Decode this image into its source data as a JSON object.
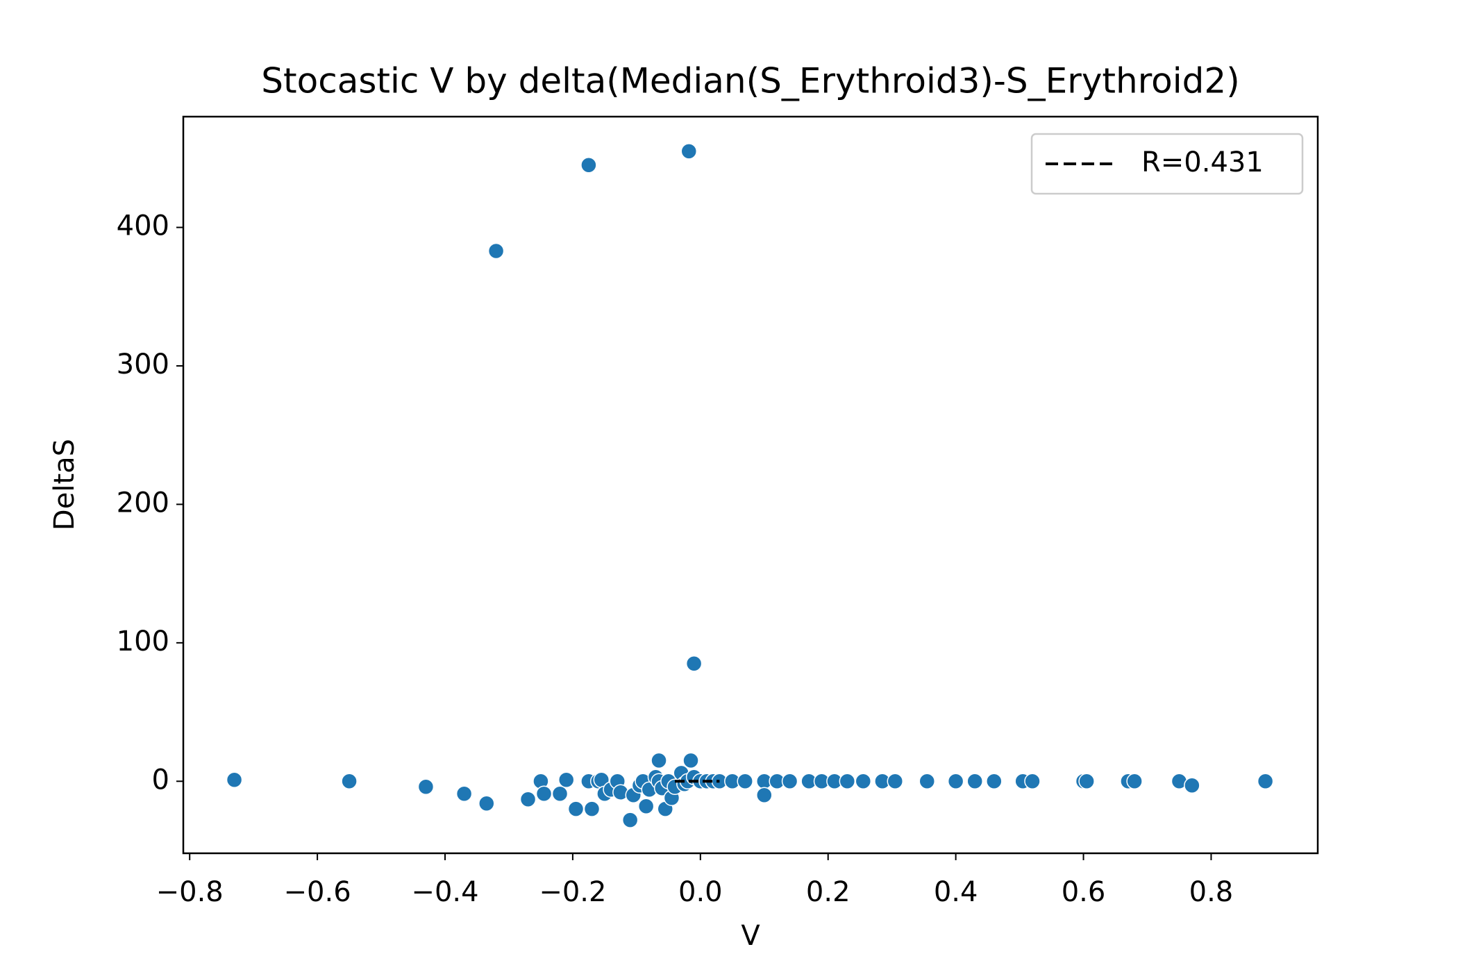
{
  "chart_data": {
    "type": "scatter",
    "title": "Stocastic V by delta(Median(S_Erythroid3)-S_Erythroid2)",
    "x_label": "V",
    "y_label": "DeltaS",
    "xlim": [
      -0.81,
      0.967
    ],
    "ylim": [
      -52,
      480
    ],
    "xticks": [
      {
        "value": -0.8,
        "label": "−0.8"
      },
      {
        "value": -0.6,
        "label": "−0.6"
      },
      {
        "value": -0.4,
        "label": "−0.4"
      },
      {
        "value": -0.2,
        "label": "−0.2"
      },
      {
        "value": 0,
        "label": "0.0"
      },
      0.2,
      0.4,
      0.6,
      0.8
    ],
    "yticks": [
      0,
      100,
      200,
      300,
      400
    ],
    "legend": "upper right",
    "series": [
      {
        "color": "#1f77b4",
        "x": [
          -0.73,
          -0.55,
          -0.43,
          -0.37,
          -0.335,
          -0.32,
          -0.175,
          -0.018,
          -0.01,
          -0.065,
          -0.015,
          -0.27,
          -0.25,
          -0.245,
          -0.22,
          -0.21,
          -0.195,
          -0.175,
          -0.17,
          -0.16,
          -0.155,
          -0.15,
          -0.14,
          -0.13,
          -0.125,
          -0.11,
          -0.105,
          -0.095,
          -0.09,
          -0.085,
          -0.08,
          -0.07,
          -0.065,
          -0.06,
          -0.055,
          -0.05,
          -0.045,
          -0.04,
          -0.03,
          -0.025,
          -0.02,
          -0.01,
          0,
          0.01,
          0.02,
          0.03,
          0.05,
          0.07,
          0.1,
          0.1,
          0.12,
          0.14,
          0.17,
          0.19,
          0.21,
          0.23,
          0.255,
          0.285,
          0.305,
          0.355,
          0.4,
          0.43,
          0.46,
          0.505,
          0.52,
          0.6,
          0.605,
          0.67,
          0.68,
          0.75,
          0.77,
          0.885
        ],
        "values": [
          1,
          0,
          -4,
          -9,
          -16,
          383,
          445,
          455,
          85,
          15,
          15,
          -13,
          0,
          -9,
          -9,
          1,
          -20,
          0,
          -20,
          0,
          1,
          -9,
          -6,
          0,
          -8,
          -28,
          -10,
          -3,
          0,
          -18,
          -6,
          3,
          0,
          -5,
          -20,
          0,
          -12,
          -4,
          6,
          -2,
          0,
          3,
          0,
          0,
          0,
          0,
          0,
          0,
          0,
          -10,
          0,
          0,
          0,
          0,
          0,
          0,
          0,
          0,
          0,
          0,
          0,
          0,
          0,
          0,
          0,
          0,
          0,
          0,
          0,
          0,
          -3,
          0
        ]
      },
      {
        "name": "R=0.431",
        "color": "#000000",
        "style": "dashed",
        "x": [
          -0.04,
          0.03
        ],
        "values": [
          0,
          0
        ]
      }
    ]
  }
}
